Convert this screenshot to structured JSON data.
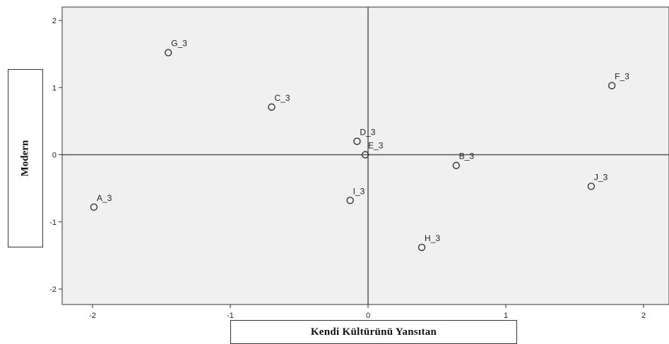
{
  "chart_data": {
    "type": "scatter",
    "xlabel": "Kendi Kültürünü Yansıtan",
    "ylabel": "Modern",
    "xlim": [
      -2.2,
      2.2
    ],
    "ylim": [
      -2.2,
      2.2
    ],
    "xticks": [
      "-2",
      "-1",
      "0",
      "1",
      "2"
    ],
    "yticks": [
      "2",
      "1",
      "0",
      "-1",
      "-2"
    ],
    "xtick_values": [
      -2,
      -1,
      0,
      1,
      2
    ],
    "ytick_values": [
      2,
      1,
      0,
      -1,
      -2
    ],
    "grid": false,
    "reference_lines": [
      0,
      0
    ],
    "points": [
      {
        "label": "A_3",
        "x": -1.99,
        "y": -0.78
      },
      {
        "label": "G_3",
        "x": -1.45,
        "y": 1.52
      },
      {
        "label": "C_3",
        "x": -0.7,
        "y": 0.71
      },
      {
        "label": "D_3",
        "x": -0.08,
        "y": 0.2
      },
      {
        "label": "E_3",
        "x": -0.02,
        "y": 0.0
      },
      {
        "label": "I_3",
        "x": -0.13,
        "y": -0.68
      },
      {
        "label": "B_3",
        "x": 0.64,
        "y": -0.16
      },
      {
        "label": "H_3",
        "x": 0.39,
        "y": -1.38
      },
      {
        "label": "J_3",
        "x": 1.62,
        "y": -0.47
      },
      {
        "label": "F_3",
        "x": 1.77,
        "y": 1.03
      }
    ],
    "colors": {
      "plot_background": "#f0f0f0",
      "marker": "#333333",
      "axis_line": "#555555"
    }
  }
}
